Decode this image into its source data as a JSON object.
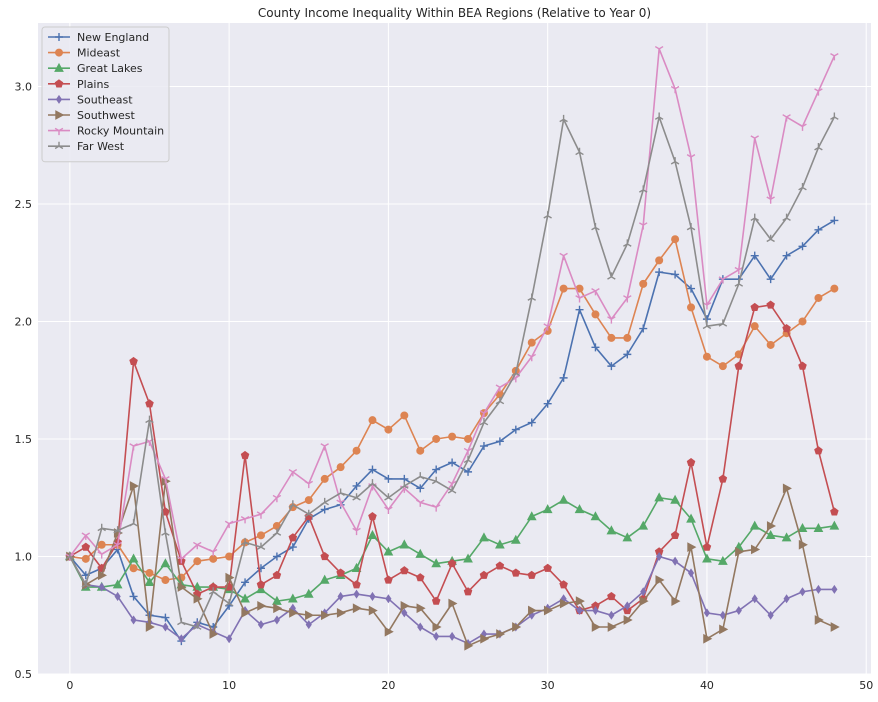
{
  "chart_data": {
    "type": "line",
    "title": "County Income Inequality Within BEA Regions (Relative to Year 0)",
    "xlabel": "",
    "ylabel": "",
    "xlim": [
      -2,
      50.3
    ],
    "ylim": [
      0.5,
      3.27
    ],
    "xticks": [
      0,
      10,
      20,
      30,
      40,
      50
    ],
    "xtick_labels": [
      "0",
      "10",
      "20",
      "30",
      "40",
      "50"
    ],
    "yticks": [
      0.5,
      1.0,
      1.5,
      2.0,
      2.5,
      3.0
    ],
    "ytick_labels": [
      "0.5",
      "1.0",
      "1.5",
      "2.0",
      "2.5",
      "3.0"
    ],
    "grid": true,
    "legend_position": "top-left",
    "x": [
      0,
      1,
      2,
      3,
      4,
      5,
      6,
      7,
      8,
      9,
      10,
      11,
      12,
      13,
      14,
      15,
      16,
      17,
      18,
      19,
      20,
      21,
      22,
      23,
      24,
      25,
      26,
      27,
      28,
      29,
      30,
      31,
      32,
      33,
      34,
      35,
      36,
      37,
      38,
      39,
      40,
      41,
      42,
      43,
      44,
      45,
      46,
      47,
      48
    ],
    "series": [
      {
        "name": "New England",
        "color": "#4c72b0",
        "marker": "plus",
        "values": [
          1.0,
          0.92,
          0.95,
          1.03,
          0.83,
          0.75,
          0.74,
          0.64,
          0.72,
          0.7,
          0.79,
          0.89,
          0.95,
          1.0,
          1.04,
          1.16,
          1.2,
          1.22,
          1.3,
          1.37,
          1.33,
          1.33,
          1.29,
          1.37,
          1.4,
          1.36,
          1.47,
          1.49,
          1.54,
          1.57,
          1.65,
          1.76,
          2.05,
          1.89,
          1.81,
          1.86,
          1.97,
          2.21,
          2.2,
          2.14,
          2.01,
          2.18,
          2.18,
          2.28,
          2.18,
          2.28,
          2.32,
          2.39,
          2.43
        ]
      },
      {
        "name": "Mideast",
        "color": "#dd8452",
        "marker": "circle",
        "values": [
          1.0,
          0.99,
          1.05,
          1.05,
          0.95,
          0.93,
          0.9,
          0.91,
          0.98,
          0.99,
          1.0,
          1.06,
          1.09,
          1.13,
          1.21,
          1.24,
          1.33,
          1.38,
          1.45,
          1.58,
          1.54,
          1.6,
          1.45,
          1.5,
          1.51,
          1.5,
          1.61,
          1.69,
          1.79,
          1.91,
          1.96,
          2.14,
          2.14,
          2.03,
          1.93,
          1.93,
          2.16,
          2.26,
          2.35,
          2.06,
          1.85,
          1.81,
          1.86,
          1.98,
          1.9,
          1.95,
          2.0,
          2.1,
          2.14
        ]
      },
      {
        "name": "Great Lakes",
        "color": "#55a868",
        "marker": "triangle",
        "values": [
          1.0,
          0.87,
          0.87,
          0.88,
          0.99,
          0.89,
          0.97,
          0.88,
          0.87,
          0.87,
          0.86,
          0.82,
          0.86,
          0.81,
          0.82,
          0.84,
          0.9,
          0.92,
          0.95,
          1.09,
          1.02,
          1.05,
          1.01,
          0.97,
          0.98,
          0.99,
          1.08,
          1.05,
          1.07,
          1.17,
          1.2,
          1.24,
          1.2,
          1.17,
          1.11,
          1.08,
          1.13,
          1.25,
          1.24,
          1.16,
          0.99,
          0.98,
          1.04,
          1.13,
          1.09,
          1.08,
          1.12,
          1.12,
          1.13
        ]
      },
      {
        "name": "Plains",
        "color": "#c44e52",
        "marker": "pentagon",
        "values": [
          1.0,
          1.04,
          0.95,
          1.06,
          1.83,
          1.65,
          1.19,
          0.98,
          0.84,
          0.87,
          0.87,
          1.43,
          0.88,
          0.92,
          1.08,
          1.17,
          1.0,
          0.93,
          0.88,
          1.17,
          0.9,
          0.94,
          0.91,
          0.81,
          0.97,
          0.85,
          0.92,
          0.96,
          0.93,
          0.92,
          0.95,
          0.88,
          0.77,
          0.79,
          0.83,
          0.77,
          0.82,
          1.02,
          1.09,
          1.4,
          1.04,
          1.33,
          1.81,
          2.06,
          2.07,
          1.97,
          1.81,
          1.45,
          1.19
        ]
      },
      {
        "name": "Southeast",
        "color": "#8172b3",
        "marker": "diamond",
        "values": [
          1.0,
          0.88,
          0.87,
          0.83,
          0.73,
          0.72,
          0.7,
          0.65,
          0.71,
          0.68,
          0.65,
          0.77,
          0.71,
          0.73,
          0.78,
          0.71,
          0.76,
          0.83,
          0.84,
          0.83,
          0.82,
          0.76,
          0.7,
          0.66,
          0.66,
          0.63,
          0.67,
          0.67,
          0.7,
          0.75,
          0.78,
          0.82,
          0.77,
          0.77,
          0.75,
          0.79,
          0.85,
          1.0,
          0.98,
          0.93,
          0.76,
          0.75,
          0.77,
          0.82,
          0.75,
          0.82,
          0.85,
          0.86,
          0.86
        ]
      },
      {
        "name": "Southwest",
        "color": "#937860",
        "marker": "triangle-right",
        "values": [
          1.0,
          0.88,
          0.92,
          1.1,
          1.3,
          0.7,
          1.32,
          0.87,
          0.82,
          0.67,
          0.91,
          0.76,
          0.79,
          0.78,
          0.76,
          0.75,
          0.75,
          0.76,
          0.78,
          0.77,
          0.68,
          0.79,
          0.78,
          0.7,
          0.8,
          0.62,
          0.65,
          0.67,
          0.7,
          0.77,
          0.77,
          0.8,
          0.81,
          0.7,
          0.7,
          0.73,
          0.81,
          0.9,
          0.81,
          1.04,
          0.65,
          0.69,
          1.02,
          1.03,
          1.13,
          1.29,
          1.05,
          0.73,
          0.7
        ]
      },
      {
        "name": "Rocky Mountain",
        "color": "#da8bc3",
        "marker": "tri-down",
        "values": [
          1.0,
          1.09,
          1.01,
          1.05,
          1.47,
          1.49,
          1.33,
          0.99,
          1.05,
          1.02,
          1.14,
          1.16,
          1.18,
          1.25,
          1.36,
          1.31,
          1.47,
          1.23,
          1.11,
          1.3,
          1.2,
          1.29,
          1.23,
          1.21,
          1.31,
          1.45,
          1.61,
          1.72,
          1.76,
          1.85,
          1.98,
          2.28,
          2.1,
          2.13,
          2.01,
          2.1,
          2.41,
          3.16,
          2.99,
          2.7,
          2.07,
          2.18,
          2.22,
          2.78,
          2.52,
          2.87,
          2.83,
          2.98,
          3.13
        ]
      },
      {
        "name": "Far West",
        "color": "#8c8c8c",
        "marker": "tri-up",
        "values": [
          1.0,
          0.88,
          1.12,
          1.11,
          1.14,
          1.58,
          1.1,
          0.72,
          0.7,
          0.85,
          0.8,
          1.06,
          1.04,
          1.1,
          1.22,
          1.18,
          1.23,
          1.27,
          1.25,
          1.31,
          1.25,
          1.3,
          1.34,
          1.32,
          1.28,
          1.41,
          1.57,
          1.66,
          1.78,
          2.1,
          2.45,
          2.86,
          2.72,
          2.4,
          2.19,
          2.33,
          2.56,
          2.87,
          2.68,
          2.4,
          1.98,
          1.99,
          2.16,
          2.44,
          2.35,
          2.44,
          2.57,
          2.74,
          2.87
        ]
      }
    ]
  }
}
